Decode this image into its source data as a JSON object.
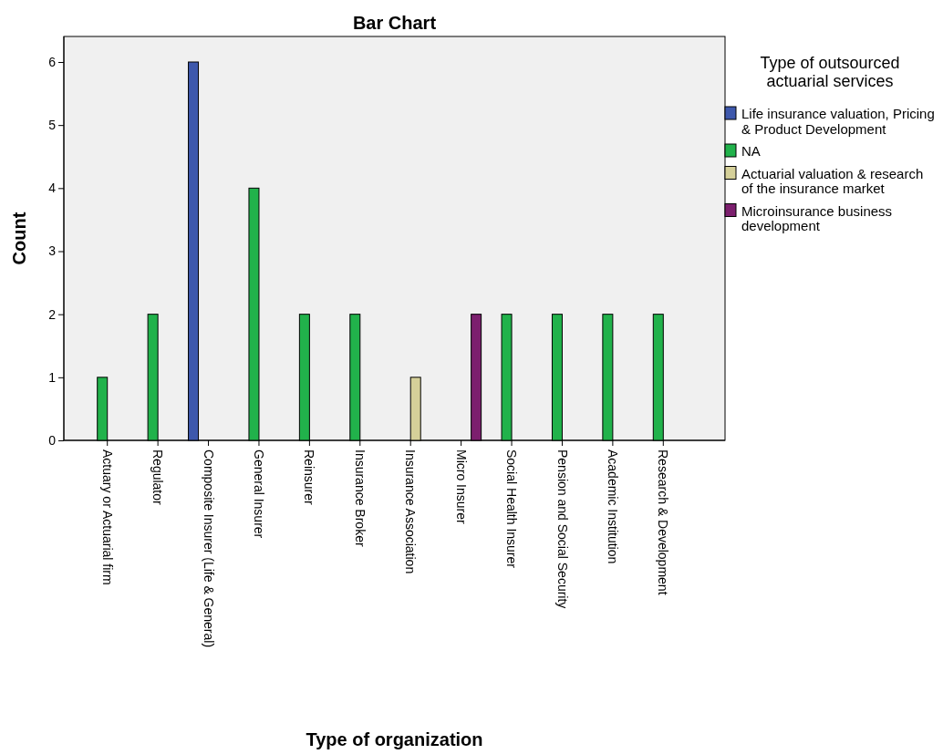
{
  "chart_data": {
    "type": "bar",
    "title": "Bar Chart",
    "xlabel": "Type of organization",
    "ylabel": "Count",
    "legend_title": "Type of outsourced actuarial services",
    "categories": [
      "Actuary or Actuarial firm",
      "Regulator",
      "Composite Insurer (Life & General)",
      "General Insurer",
      "Reinsurer",
      "Insurance Broker",
      "Insurance Association",
      "Micro Insurer",
      "Social Health Insurer",
      "Pension and Social Security",
      "Academic Institution",
      "Research & Development"
    ],
    "series": [
      {
        "name": "Life insurance valuation, Pricing & Product Development",
        "color": "#3e58ac",
        "values": [
          null,
          null,
          6,
          null,
          null,
          null,
          null,
          null,
          null,
          null,
          null,
          null
        ]
      },
      {
        "name": "NA",
        "color": "#21b24b",
        "values": [
          1,
          2,
          null,
          4,
          2,
          2,
          null,
          null,
          2,
          2,
          2,
          2
        ]
      },
      {
        "name": "Actuarial valuation & research of the insurance market",
        "color": "#d5d099",
        "values": [
          null,
          null,
          null,
          null,
          null,
          null,
          1,
          null,
          null,
          null,
          null,
          null
        ]
      },
      {
        "name": "Microinsurance business development",
        "color": "#7c1f6e",
        "values": [
          null,
          null,
          null,
          null,
          null,
          null,
          null,
          2,
          null,
          null,
          null,
          null
        ]
      }
    ],
    "ylim": [
      0,
      6
    ],
    "yticks": [
      0,
      1,
      2,
      3,
      4,
      5,
      6
    ],
    "grid": false,
    "legend": "top right"
  }
}
